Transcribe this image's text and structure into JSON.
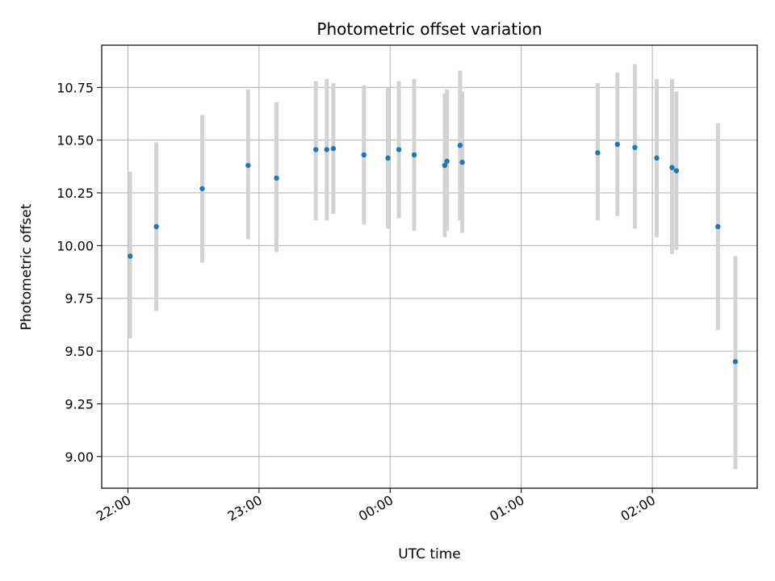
{
  "chart_data": {
    "type": "scatter",
    "title": "Photometric offset variation",
    "xlabel": "UTC time",
    "ylabel": "Photometric offset",
    "x_axis": "time",
    "x_range": [
      "21:48",
      "02:48"
    ],
    "ylim": [
      8.85,
      10.95
    ],
    "grid": true,
    "x_ticks": [
      "22:00",
      "23:00",
      "00:00",
      "01:00",
      "02:00"
    ],
    "y_ticks": [
      9.0,
      9.25,
      9.5,
      9.75,
      10.0,
      10.25,
      10.5,
      10.75
    ],
    "y_tick_labels": [
      "9.00",
      "9.25",
      "9.50",
      "9.75",
      "10.00",
      "10.25",
      "10.50",
      "10.75"
    ],
    "colors": {
      "marker": "#1f77b4",
      "errorbar": "#d3d3d3",
      "grid": "#b0b0b0"
    },
    "points": [
      {
        "x": "22:01",
        "y": 9.95,
        "ylo": 9.56,
        "yhi": 10.35
      },
      {
        "x": "22:13",
        "y": 10.09,
        "ylo": 9.69,
        "yhi": 10.49
      },
      {
        "x": "22:34",
        "y": 10.27,
        "ylo": 9.92,
        "yhi": 10.62
      },
      {
        "x": "22:55",
        "y": 10.38,
        "ylo": 10.03,
        "yhi": 10.74
      },
      {
        "x": "23:08",
        "y": 10.32,
        "ylo": 9.97,
        "yhi": 10.68
      },
      {
        "x": "23:26",
        "y": 10.455,
        "ylo": 10.12,
        "yhi": 10.78
      },
      {
        "x": "23:31",
        "y": 10.455,
        "ylo": 10.12,
        "yhi": 10.79
      },
      {
        "x": "23:34",
        "y": 10.46,
        "ylo": 10.15,
        "yhi": 10.77
      },
      {
        "x": "23:48",
        "y": 10.43,
        "ylo": 10.1,
        "yhi": 10.76
      },
      {
        "x": "23:59",
        "y": 10.415,
        "ylo": 10.08,
        "yhi": 10.75
      },
      {
        "x": "00:04",
        "y": 10.455,
        "ylo": 10.13,
        "yhi": 10.78
      },
      {
        "x": "00:11",
        "y": 10.43,
        "ylo": 10.07,
        "yhi": 10.79
      },
      {
        "x": "00:25",
        "y": 10.38,
        "ylo": 10.04,
        "yhi": 10.72
      },
      {
        "x": "00:26",
        "y": 10.4,
        "ylo": 10.07,
        "yhi": 10.74
      },
      {
        "x": "00:32",
        "y": 10.475,
        "ylo": 10.12,
        "yhi": 10.83
      },
      {
        "x": "00:33",
        "y": 10.395,
        "ylo": 10.06,
        "yhi": 10.73
      },
      {
        "x": "01:35",
        "y": 10.44,
        "ylo": 10.12,
        "yhi": 10.77
      },
      {
        "x": "01:44",
        "y": 10.48,
        "ylo": 10.14,
        "yhi": 10.82
      },
      {
        "x": "01:52",
        "y": 10.465,
        "ylo": 10.08,
        "yhi": 10.86
      },
      {
        "x": "02:02",
        "y": 10.415,
        "ylo": 10.04,
        "yhi": 10.79
      },
      {
        "x": "02:09",
        "y": 10.37,
        "ylo": 9.96,
        "yhi": 10.79
      },
      {
        "x": "02:11",
        "y": 10.355,
        "ylo": 9.98,
        "yhi": 10.73
      },
      {
        "x": "02:30",
        "y": 10.09,
        "ylo": 9.6,
        "yhi": 10.58
      },
      {
        "x": "02:38",
        "y": 9.45,
        "ylo": 8.94,
        "yhi": 9.95
      }
    ]
  }
}
